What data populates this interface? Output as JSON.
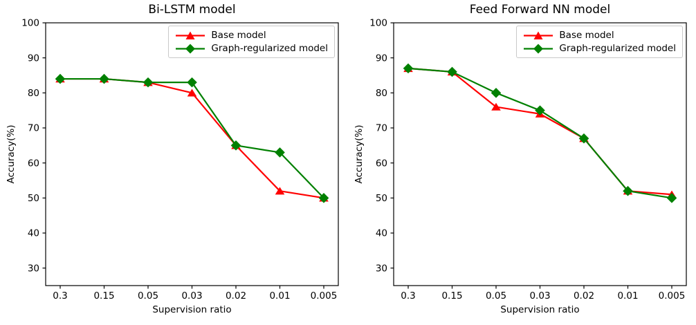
{
  "figure": {
    "background": "#ffffff"
  },
  "colors": {
    "base_model": "#ff0000",
    "graph_regularized_model": "#008000",
    "axis": "#000000",
    "legend_border": "#c9c9c9",
    "text": "#000000"
  },
  "chart_data": [
    {
      "type": "line",
      "title": "Bi-LSTM model",
      "xlabel": "Supervision ratio",
      "ylabel": "Accuracy(%)",
      "categories": [
        "0.3",
        "0.15",
        "0.05",
        "0.03",
        "0.02",
        "0.01",
        "0.005"
      ],
      "yticks": [
        30,
        40,
        50,
        60,
        70,
        80,
        90,
        100
      ],
      "ylim": [
        25,
        100
      ],
      "grid": false,
      "legend_position": "upper right",
      "series": [
        {
          "name": "Base model",
          "color": "#ff0000",
          "marker": "triangle",
          "values": [
            84,
            84,
            83,
            80,
            65,
            52,
            50
          ]
        },
        {
          "name": "Graph-regularized model",
          "color": "#008000",
          "marker": "diamond",
          "values": [
            84,
            84,
            83,
            83,
            65,
            63,
            50
          ]
        }
      ]
    },
    {
      "type": "line",
      "title": "Feed Forward NN model",
      "xlabel": "Supervision ratio",
      "ylabel": "Accuracy(%)",
      "categories": [
        "0.3",
        "0.15",
        "0.05",
        "0.03",
        "0.02",
        "0.01",
        "0.005"
      ],
      "yticks": [
        30,
        40,
        50,
        60,
        70,
        80,
        90,
        100
      ],
      "ylim": [
        25,
        100
      ],
      "grid": false,
      "legend_position": "upper right",
      "series": [
        {
          "name": "Base model",
          "color": "#ff0000",
          "marker": "triangle",
          "values": [
            87,
            86,
            76,
            74,
            67,
            52,
            51
          ]
        },
        {
          "name": "Graph-regularized model",
          "color": "#008000",
          "marker": "diamond",
          "values": [
            87,
            86,
            80,
            75,
            67,
            52,
            50
          ]
        }
      ]
    }
  ]
}
